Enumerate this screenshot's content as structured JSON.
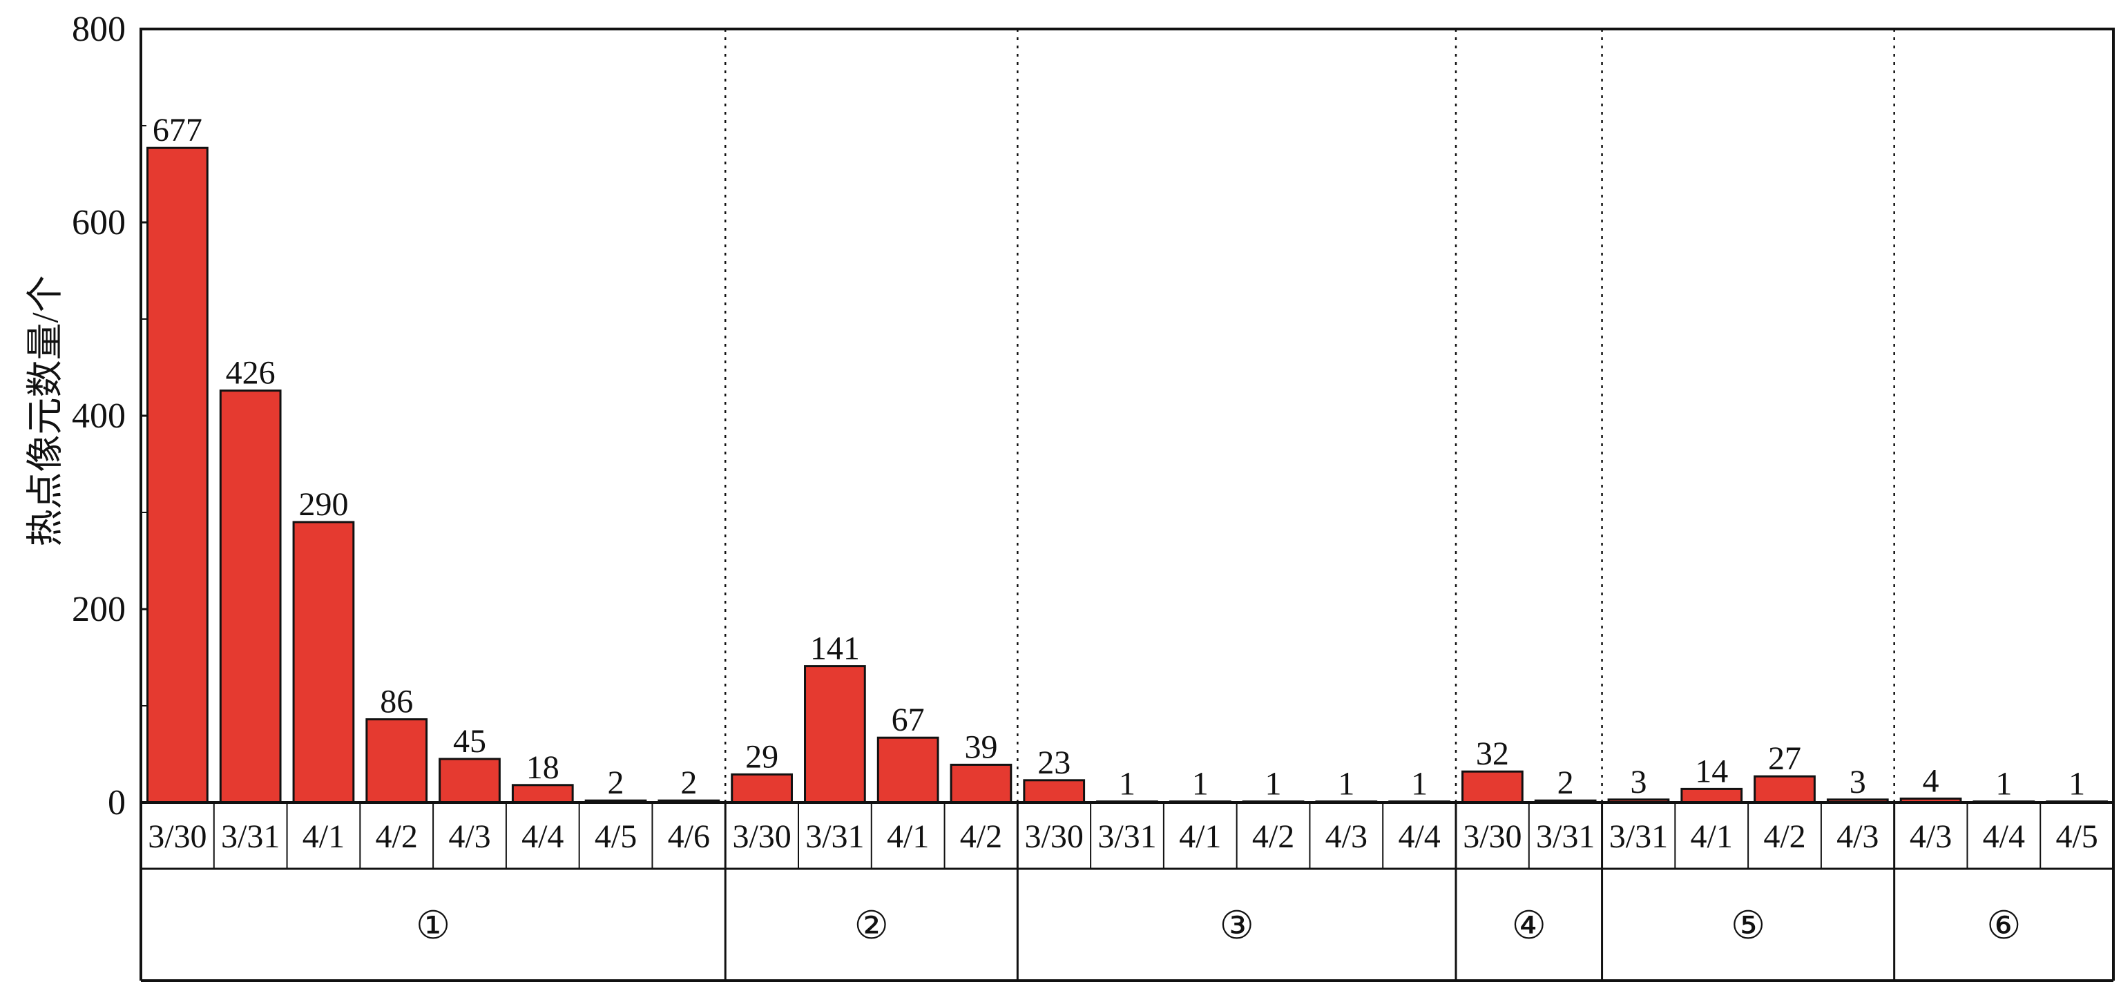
{
  "chart_data": {
    "type": "bar",
    "ylabel": "热点像元数量/个",
    "ylim": [
      0,
      800
    ],
    "yticks": [
      0,
      200,
      400,
      600,
      800
    ],
    "bar_color": "#e53a30",
    "groups": [
      {
        "label": "①",
        "categories": [
          "3/30",
          "3/31",
          "4/1",
          "4/2",
          "4/3",
          "4/4",
          "4/5",
          "4/6"
        ],
        "values": [
          677,
          426,
          290,
          86,
          45,
          18,
          2,
          2
        ]
      },
      {
        "label": "②",
        "categories": [
          "3/30",
          "3/31",
          "4/1",
          "4/2"
        ],
        "values": [
          29,
          141,
          67,
          39
        ]
      },
      {
        "label": "③",
        "categories": [
          "3/30",
          "3/31",
          "4/1",
          "4/2",
          "4/3",
          "4/4"
        ],
        "values": [
          23,
          1,
          1,
          1,
          1,
          1
        ]
      },
      {
        "label": "④",
        "categories": [
          "3/30",
          "3/31"
        ],
        "values": [
          32,
          2
        ]
      },
      {
        "label": "⑤",
        "categories": [
          "3/31",
          "4/1",
          "4/2",
          "4/3"
        ],
        "values": [
          3,
          14,
          27,
          3
        ]
      },
      {
        "label": "⑥",
        "categories": [
          "4/3",
          "4/4",
          "4/5"
        ],
        "values": [
          4,
          1,
          1
        ]
      }
    ]
  }
}
